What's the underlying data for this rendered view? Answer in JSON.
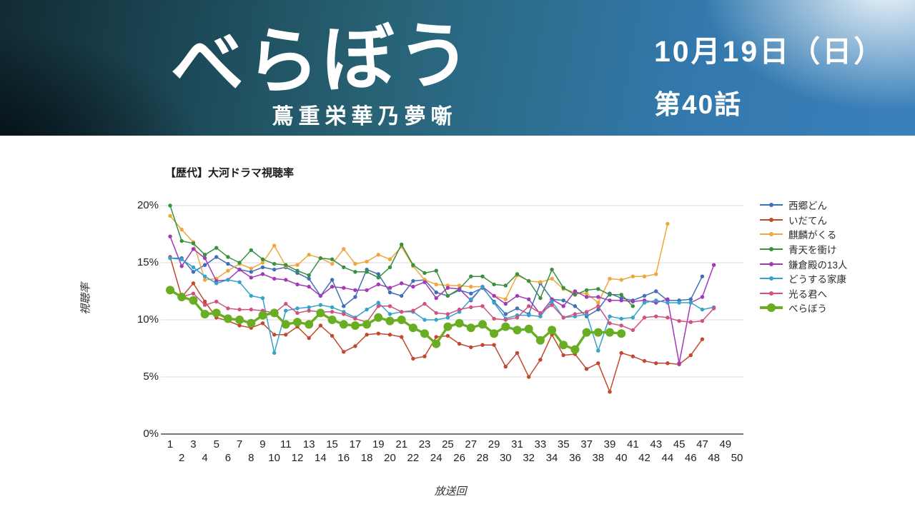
{
  "banner": {
    "title": "べらぼう",
    "subtitle": "蔦重栄華乃夢噺",
    "date_line": "10月19日（日）",
    "episode_line": "第40話"
  },
  "chart": {
    "title": "【歴代】大河ドラマ視聴率",
    "y_axis_title": "視聴率",
    "x_axis_title": "放送回",
    "y_ticks": [
      {
        "label": "20%",
        "value": 20
      },
      {
        "label": "15%",
        "value": 15
      },
      {
        "label": "10%",
        "value": 10
      },
      {
        "label": "5%",
        "value": 5
      },
      {
        "label": "0%",
        "value": 0
      }
    ],
    "x_ticks_min": 1,
    "x_ticks_max": 50
  },
  "chart_data": {
    "type": "line",
    "title": "【歴代】大河ドラマ視聴率",
    "xlabel": "放送回",
    "ylabel": "視聴率",
    "xlim": [
      1,
      50
    ],
    "ylim": [
      0,
      20
    ],
    "y_unit": "%",
    "grid": true,
    "legend_position": "right",
    "x_description": "episode number, 1..N for each series",
    "series": [
      {
        "name": "西郷どん",
        "color": "#3f6fb5",
        "emphasis": false,
        "values": [
          15.4,
          15.4,
          14.2,
          14.8,
          15.5,
          14.9,
          14.4,
          14.2,
          14.6,
          14.4,
          14.6,
          14.1,
          13.6,
          12.1,
          13.5,
          11.2,
          12.0,
          14.4,
          14.0,
          12.4,
          12.1,
          13.4,
          13.5,
          12.4,
          12.1,
          12.6,
          12.3,
          12.8,
          11.6,
          10.5,
          11.0,
          10.5,
          13.2,
          11.8,
          11.7,
          11.2,
          10.3,
          10.9,
          12.3,
          11.9,
          11.7,
          12.1,
          12.5,
          11.7,
          11.7,
          11.8,
          13.8
        ]
      },
      {
        "name": "いだてん",
        "color": "#c2482e",
        "emphasis": false,
        "values": [
          15.5,
          12.0,
          13.2,
          11.6,
          10.2,
          9.9,
          9.5,
          9.3,
          9.7,
          8.7,
          8.7,
          9.4,
          8.4,
          9.5,
          8.6,
          7.2,
          7.7,
          8.7,
          8.8,
          8.7,
          8.5,
          6.6,
          6.8,
          8.5,
          8.6,
          7.9,
          7.6,
          7.8,
          7.8,
          5.9,
          7.1,
          5.0,
          6.5,
          8.7,
          6.9,
          7.0,
          5.7,
          6.2,
          3.7,
          7.1,
          6.8,
          6.4,
          6.2,
          6.2,
          6.1,
          6.9,
          8.3
        ]
      },
      {
        "name": "麒麟がくる",
        "color": "#efa63c",
        "emphasis": false,
        "values": [
          19.1,
          17.9,
          16.8,
          13.5,
          13.6,
          14.3,
          14.9,
          14.5,
          15.0,
          16.5,
          14.7,
          14.8,
          15.7,
          15.4,
          14.9,
          16.2,
          14.9,
          15.1,
          15.7,
          15.3,
          16.4,
          14.7,
          13.5,
          13.1,
          13.0,
          13.0,
          12.9,
          12.9,
          12.1,
          11.8,
          13.9,
          13.4,
          13.3,
          13.6,
          12.7,
          12.4,
          12.3,
          11.5,
          13.6,
          13.5,
          13.8,
          13.8,
          14.0,
          18.4
        ]
      },
      {
        "name": "青天を衝け",
        "color": "#39913f",
        "emphasis": false,
        "values": [
          20.0,
          16.9,
          16.7,
          15.7,
          16.3,
          15.5,
          15.0,
          16.1,
          15.3,
          14.9,
          14.8,
          14.3,
          13.9,
          15.4,
          15.3,
          14.6,
          14.2,
          14.2,
          13.7,
          14.6,
          16.6,
          14.8,
          14.1,
          14.3,
          12.1,
          12.7,
          13.8,
          13.8,
          13.1,
          13.0,
          14.0,
          13.4,
          11.9,
          14.4,
          12.8,
          12.2,
          12.6,
          12.7,
          12.2,
          12.2,
          11.2
        ]
      },
      {
        "name": "鎌倉殿の13人",
        "color": "#a23ab6",
        "emphasis": false,
        "values": [
          17.3,
          14.7,
          16.2,
          15.4,
          13.4,
          13.5,
          14.4,
          13.7,
          14.0,
          13.6,
          13.5,
          13.1,
          12.9,
          12.1,
          12.9,
          12.8,
          12.6,
          12.6,
          13.1,
          12.8,
          13.2,
          12.9,
          13.3,
          11.9,
          12.8,
          12.7,
          11.7,
          12.9,
          12.1,
          11.4,
          12.1,
          11.8,
          10.5,
          11.8,
          11.2,
          12.5,
          12.0,
          12.0,
          11.7,
          11.7,
          11.6,
          11.7,
          11.5,
          11.8,
          6.2,
          11.5,
          12.0,
          14.8
        ]
      },
      {
        "name": "どうする家康",
        "color": "#35a2cb",
        "emphasis": false,
        "values": [
          15.4,
          15.3,
          14.6,
          13.8,
          13.2,
          13.5,
          13.3,
          12.1,
          11.9,
          7.1,
          10.8,
          11.0,
          11.1,
          11.3,
          11.1,
          10.7,
          10.2,
          10.9,
          11.5,
          10.5,
          10.7,
          10.7,
          10.0,
          10.0,
          10.2,
          10.7,
          11.8,
          12.9,
          11.5,
          10.1,
          10.4,
          10.4,
          10.3,
          11.6,
          10.2,
          10.3,
          10.5,
          7.3,
          10.3,
          10.1,
          10.2,
          11.5,
          11.7,
          11.5,
          11.5,
          11.5,
          10.9,
          11.1
        ]
      },
      {
        "name": "光る君へ",
        "color": "#d2527f",
        "emphasis": false,
        "values": [
          12.7,
          12.0,
          12.3,
          11.3,
          11.6,
          11.0,
          10.9,
          10.9,
          10.8,
          10.6,
          11.4,
          10.6,
          10.8,
          10.7,
          10.7,
          10.5,
          10.1,
          9.8,
          11.2,
          11.2,
          10.7,
          10.8,
          11.4,
          10.6,
          10.5,
          10.9,
          11.1,
          11.2,
          10.1,
          10.0,
          10.2,
          11.2,
          10.6,
          11.3,
          10.2,
          10.5,
          10.7,
          11.2,
          9.7,
          9.5,
          9.1,
          10.2,
          10.3,
          10.2,
          9.9,
          9.8,
          9.9,
          11.0
        ]
      },
      {
        "name": "べらぼう",
        "color": "#69ad22",
        "emphasis": true,
        "values": [
          12.6,
          12.0,
          11.7,
          10.5,
          10.6,
          10.1,
          10.0,
          9.7,
          10.4,
          10.6,
          9.6,
          9.8,
          9.6,
          10.6,
          10.0,
          9.6,
          9.5,
          9.6,
          10.2,
          9.9,
          10.0,
          9.3,
          8.8,
          7.9,
          9.4,
          9.7,
          9.3,
          9.6,
          8.8,
          9.4,
          9.1,
          9.2,
          8.2,
          9.1,
          7.8,
          7.4,
          8.9,
          8.9,
          8.9,
          8.8
        ]
      }
    ]
  }
}
